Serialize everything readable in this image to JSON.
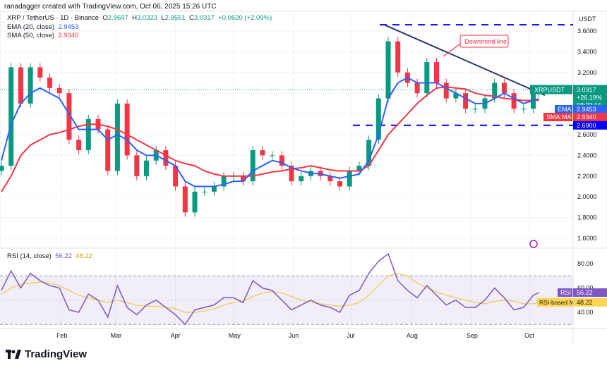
{
  "credit": "ranadagger created with TradingView.com, Oct 06, 2025 15:26 UTC",
  "symbol": {
    "name": "XRP / TetherUS · 1D · Binance",
    "o_label": "O",
    "o": "2.9697",
    "h_label": "H",
    "h": "3.0323",
    "l_label": "L",
    "l": "2.9551",
    "c_label": "C",
    "c": "3.0317",
    "change": "+0.0620 (+2.09%)"
  },
  "ema": {
    "label": "EMA (20, close)",
    "value": "2.9453",
    "tag": "EMA"
  },
  "sma": {
    "label": "SMA (50, close)",
    "value": "2.9340",
    "tag": "SMA:MA"
  },
  "rsi": {
    "label": "RSI (14, close)",
    "value": "56.22",
    "ma_value": "48.22",
    "tag": "RSI",
    "ma_tag": "RSI-based MA"
  },
  "price_tag": {
    "symbol": "XRPUSDT",
    "price": "3.0317",
    "change": "+26.19%",
    "countdown": "08:33:16"
  },
  "support_tag": "2.6900",
  "currency": "USDT",
  "annotation": "Downtrend line",
  "logo": "TradingView",
  "colors": {
    "up": "#089981",
    "down": "#f23645",
    "ema": "#2962ff",
    "sma": "#f23645",
    "rsi": "#7e57c2",
    "rsi_ma": "#f0c94a",
    "level": "#0000ff",
    "trend": "#2a3b6e"
  },
  "chart_data": {
    "type": "candlestick",
    "price_axis": {
      "ticks": [
        "3.6000",
        "3.4000",
        "3.2000",
        "3.0000",
        "2.8000",
        "2.6000",
        "2.4000",
        "2.2000",
        "2.0000",
        "1.8000",
        "1.6000"
      ],
      "range": [
        1.55,
        3.75
      ]
    },
    "time_axis": {
      "ticks": [
        {
          "label": "Feb",
          "date": "2025-02-01"
        },
        {
          "label": "Mar",
          "date": "2025-03-01"
        },
        {
          "label": "Apr",
          "date": "2025-04-01"
        },
        {
          "label": "May",
          "date": "2025-05-01"
        },
        {
          "label": "Jun",
          "date": "2025-06-01"
        },
        {
          "label": "Jul",
          "date": "2025-07-01"
        },
        {
          "label": "Aug",
          "date": "2025-08-01"
        },
        {
          "label": "Sep",
          "date": "2025-09-01"
        },
        {
          "label": "Oct",
          "date": "2025-10-01"
        }
      ]
    },
    "dates": [
      "2025-01-01",
      "2025-01-06",
      "2025-01-11",
      "2025-01-16",
      "2025-01-21",
      "2025-01-26",
      "2025-01-31",
      "2025-02-05",
      "2025-02-10",
      "2025-02-15",
      "2025-02-20",
      "2025-02-25",
      "2025-03-02",
      "2025-03-07",
      "2025-03-12",
      "2025-03-17",
      "2025-03-22",
      "2025-03-27",
      "2025-04-01",
      "2025-04-06",
      "2025-04-11",
      "2025-04-16",
      "2025-04-21",
      "2025-04-26",
      "2025-05-01",
      "2025-05-06",
      "2025-05-11",
      "2025-05-16",
      "2025-05-21",
      "2025-05-26",
      "2025-05-31",
      "2025-06-05",
      "2025-06-10",
      "2025-06-15",
      "2025-06-20",
      "2025-06-25",
      "2025-06-30",
      "2025-07-05",
      "2025-07-10",
      "2025-07-15",
      "2025-07-20",
      "2025-07-25",
      "2025-07-30",
      "2025-08-04",
      "2025-08-09",
      "2025-08-14",
      "2025-08-19",
      "2025-08-24",
      "2025-08-29",
      "2025-09-03",
      "2025-09-08",
      "2025-09-13",
      "2025-09-18",
      "2025-09-23",
      "2025-09-28",
      "2025-10-03",
      "2025-10-06"
    ],
    "close": [
      2.3,
      3.25,
      2.9,
      3.25,
      3.15,
      3.05,
      3.0,
      2.55,
      2.45,
      2.75,
      2.65,
      2.25,
      2.9,
      2.4,
      2.2,
      2.35,
      2.45,
      2.3,
      2.1,
      1.85,
      2.05,
      2.05,
      2.1,
      2.2,
      2.2,
      2.15,
      2.45,
      2.4,
      2.4,
      2.3,
      2.15,
      2.2,
      2.25,
      2.2,
      2.15,
      2.1,
      2.25,
      2.3,
      2.55,
      2.95,
      3.5,
      3.2,
      3.1,
      3.0,
      3.3,
      3.1,
      2.95,
      3.0,
      2.85,
      2.85,
      2.95,
      3.1,
      3.0,
      2.85,
      2.85,
      3.0,
      3.0317
    ],
    "ema20": [
      2.35,
      2.7,
      2.9,
      3.0,
      3.05,
      3.0,
      2.95,
      2.8,
      2.65,
      2.65,
      2.65,
      2.55,
      2.6,
      2.55,
      2.45,
      2.4,
      2.4,
      2.35,
      2.3,
      2.15,
      2.1,
      2.1,
      2.1,
      2.12,
      2.15,
      2.15,
      2.25,
      2.3,
      2.35,
      2.33,
      2.28,
      2.25,
      2.23,
      2.22,
      2.2,
      2.18,
      2.2,
      2.22,
      2.35,
      2.6,
      2.95,
      3.1,
      3.15,
      3.1,
      3.1,
      3.1,
      3.05,
      3.0,
      2.95,
      2.9,
      2.9,
      2.95,
      3.0,
      2.95,
      2.9,
      2.93,
      2.9453
    ],
    "sma50": [
      2.05,
      2.2,
      2.4,
      2.5,
      2.55,
      2.6,
      2.62,
      2.65,
      2.68,
      2.7,
      2.7,
      2.68,
      2.65,
      2.6,
      2.55,
      2.5,
      2.45,
      2.4,
      2.35,
      2.32,
      2.3,
      2.25,
      2.22,
      2.2,
      2.2,
      2.2,
      2.2,
      2.22,
      2.24,
      2.25,
      2.27,
      2.28,
      2.3,
      2.28,
      2.26,
      2.25,
      2.25,
      2.25,
      2.3,
      2.45,
      2.6,
      2.7,
      2.8,
      2.9,
      2.98,
      3.05,
      3.06,
      3.05,
      3.04,
      3.0,
      2.98,
      2.97,
      2.95,
      2.94,
      2.93,
      2.93,
      2.934
    ],
    "rsi_axis": {
      "ticks": [
        "80.00",
        "60.00",
        "40.00"
      ],
      "range": [
        20,
        95
      ],
      "bands": [
        70,
        50,
        30
      ]
    },
    "rsi14": [
      58,
      74,
      60,
      72,
      66,
      62,
      60,
      42,
      40,
      55,
      50,
      36,
      62,
      44,
      38,
      46,
      50,
      44,
      38,
      30,
      42,
      44,
      46,
      52,
      52,
      48,
      66,
      60,
      58,
      50,
      42,
      46,
      50,
      46,
      44,
      40,
      54,
      58,
      72,
      82,
      88,
      66,
      58,
      52,
      62,
      54,
      46,
      50,
      44,
      44,
      50,
      60,
      52,
      42,
      44,
      54,
      56.22
    ],
    "rsi_ma": [
      55,
      60,
      63,
      64,
      65,
      64,
      62,
      58,
      54,
      52,
      50,
      48,
      50,
      48,
      46,
      45,
      45,
      44,
      43,
      40,
      40,
      41,
      43,
      46,
      48,
      49,
      53,
      56,
      57,
      56,
      53,
      50,
      48,
      47,
      46,
      45,
      46,
      48,
      54,
      62,
      70,
      72,
      70,
      64,
      60,
      57,
      54,
      52,
      50,
      48,
      47,
      49,
      50,
      49,
      47,
      47,
      48.22
    ],
    "annotations": [
      {
        "type": "trendline",
        "label": "Downtrend line",
        "from": {
          "date": "2025-07-18",
          "price": 3.66
        },
        "to": {
          "date": "2025-10-09",
          "price": 2.98
        }
      },
      {
        "type": "horizontal",
        "price": 3.66
      },
      {
        "type": "horizontal",
        "price": 2.69
      }
    ]
  }
}
